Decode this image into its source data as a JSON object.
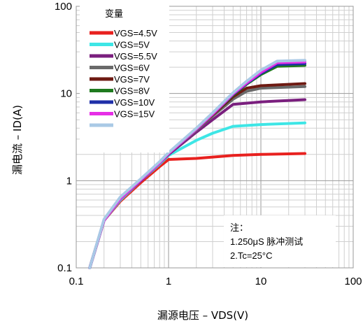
{
  "chart_data": {
    "type": "line",
    "title": "",
    "xlabel": "漏源电压 – VDS(V)",
    "ylabel": "漏电流 – ID(A)",
    "xscale": "log",
    "yscale": "log",
    "xlim": [
      0.1,
      100
    ],
    "ylim": [
      0.1,
      100
    ],
    "x_ticks": [
      "0.1",
      "1",
      "10",
      "100"
    ],
    "y_ticks": [
      "0.1",
      "1",
      "10",
      "100"
    ],
    "grid": true,
    "legend_title": "变量",
    "legend_placement": "top-left",
    "note_lines": [
      "注：",
      "1.250μS 脉冲测试",
      "2.Tc=25°C"
    ],
    "series": [
      {
        "name": "VGS=4.5V",
        "color": "#e8211f",
        "x": [
          0.14,
          0.2,
          0.3,
          0.5,
          0.8,
          1,
          2,
          5,
          10,
          30
        ],
        "y": [
          0.1,
          0.35,
          0.58,
          0.95,
          1.45,
          1.75,
          1.8,
          1.95,
          2.0,
          2.05
        ]
      },
      {
        "name": "VGS=5V",
        "color": "#3ee6e6",
        "x": [
          0.14,
          0.2,
          0.3,
          0.5,
          0.8,
          1,
          2,
          3,
          5,
          10,
          30
        ],
        "y": [
          0.1,
          0.35,
          0.6,
          1.0,
          1.55,
          1.95,
          2.9,
          3.5,
          4.2,
          4.4,
          4.6
        ]
      },
      {
        "name": "VGS=5.5V",
        "color": "#7a1f7e",
        "x": [
          0.14,
          0.2,
          0.3,
          0.5,
          0.8,
          1,
          2,
          3,
          5,
          10,
          30
        ],
        "y": [
          0.1,
          0.35,
          0.62,
          1.0,
          1.6,
          2.0,
          3.6,
          5.0,
          7.5,
          8.0,
          8.5
        ]
      },
      {
        "name": "VGS=6V",
        "color": "#6a6a6a",
        "x": [
          0.14,
          0.2,
          0.3,
          0.5,
          0.8,
          1,
          2,
          3,
          5,
          7,
          10,
          30
        ],
        "y": [
          0.1,
          0.35,
          0.62,
          1.02,
          1.6,
          2.05,
          3.8,
          5.5,
          8.6,
          10.6,
          11.5,
          12.0
        ]
      },
      {
        "name": "VGS=7V",
        "color": "#6e1a12",
        "x": [
          0.14,
          0.2,
          0.3,
          0.5,
          0.8,
          1,
          2,
          3,
          5,
          7,
          10,
          30
        ],
        "y": [
          0.1,
          0.35,
          0.62,
          1.02,
          1.6,
          2.05,
          3.9,
          5.7,
          9.2,
          11.5,
          12.3,
          13.0
        ]
      },
      {
        "name": "VGS=8V",
        "color": "#1e7a1e",
        "x": [
          0.14,
          0.2,
          0.3,
          0.5,
          0.8,
          1,
          2,
          3,
          5,
          7,
          10,
          15,
          30
        ],
        "y": [
          0.1,
          0.35,
          0.62,
          1.02,
          1.6,
          2.05,
          3.9,
          5.8,
          9.6,
          12.8,
          16.5,
          20.5,
          21.0
        ]
      },
      {
        "name": "VGS=10V",
        "color": "#1f2fa8",
        "x": [
          0.14,
          0.2,
          0.3,
          0.5,
          0.8,
          1,
          2,
          3,
          5,
          7,
          10,
          15,
          30
        ],
        "y": [
          0.1,
          0.35,
          0.62,
          1.02,
          1.6,
          2.05,
          3.9,
          5.8,
          9.8,
          13.0,
          17.0,
          21.5,
          22.0
        ]
      },
      {
        "name": "VGS=15V",
        "color": "#e62ee6",
        "x": [
          0.14,
          0.2,
          0.3,
          0.5,
          0.8,
          1,
          2,
          3,
          5,
          7,
          10,
          15,
          30
        ],
        "y": [
          0.1,
          0.35,
          0.62,
          1.02,
          1.6,
          2.05,
          3.9,
          5.8,
          9.9,
          13.2,
          17.5,
          22.5,
          23.0
        ]
      },
      {
        "name": "",
        "color": "#a9c9e6",
        "x": [
          0.14,
          0.2,
          0.3,
          0.5,
          0.8,
          1,
          2,
          3,
          5,
          7,
          10,
          15,
          30
        ],
        "y": [
          0.1,
          0.36,
          0.65,
          1.05,
          1.65,
          2.1,
          4.0,
          6.0,
          10.2,
          13.8,
          18.5,
          23.5,
          24.0
        ]
      }
    ]
  }
}
